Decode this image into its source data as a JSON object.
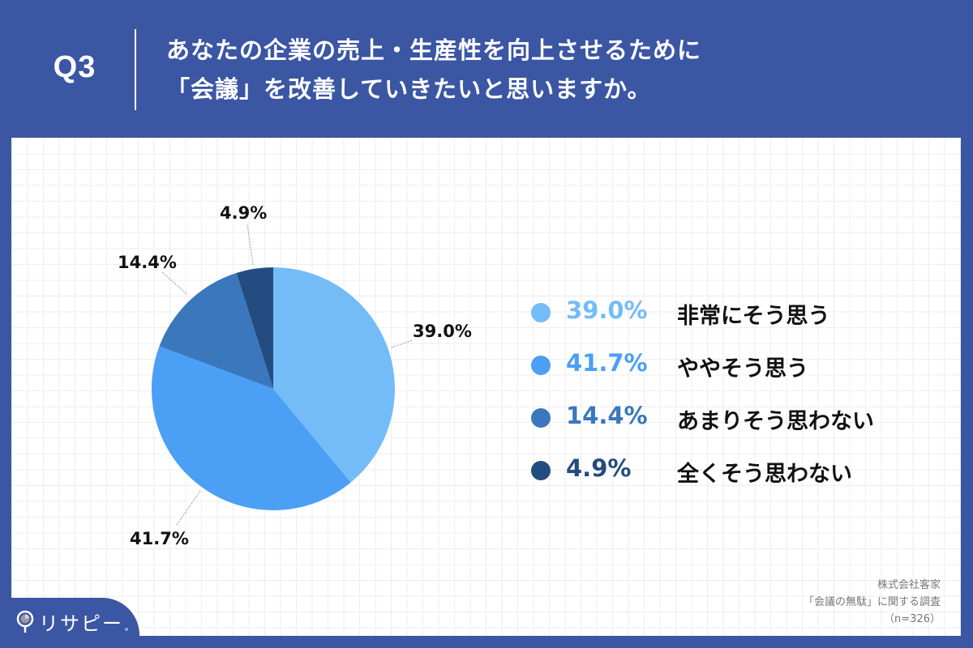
{
  "header": {
    "question_number": "Q3",
    "title_lines": [
      "あなたの企業の売上・生産性を向上させるために",
      "「会議」を改善していきたいと思いますか。"
    ]
  },
  "colors": {
    "background": "#3b56a3",
    "panel": "#ffffff",
    "grid": "#eeeeee",
    "slice_1": "#74bcf7",
    "slice_2": "#4b9ff5",
    "slice_3": "#3a77bd",
    "slice_4": "#234d80"
  },
  "chart_data": {
    "type": "pie",
    "title": "あなたの企業の売上・生産性を向上させるために「会議」を改善していきたいと思いますか。",
    "categories": [
      "非常にそう思う",
      "ややそう思う",
      "あまりそう思わない",
      "全くそう思わない"
    ],
    "values": [
      39.0,
      41.7,
      14.4,
      4.9
    ],
    "labels": [
      "39.0%",
      "41.7%",
      "14.4%",
      "4.9%"
    ],
    "colors": [
      "#74bcf7",
      "#4b9ff5",
      "#3a77bd",
      "#234d80"
    ],
    "start_angle": "12 o'clock, clockwise",
    "legend_position": "right",
    "n": 326
  },
  "legend": [
    {
      "pct": "39.0%",
      "label": "非常にそう思う",
      "color": "#74bcf7"
    },
    {
      "pct": "41.7%",
      "label": "ややそう思う",
      "color": "#4b9ff5"
    },
    {
      "pct": "14.4%",
      "label": "あまりそう思わない",
      "color": "#3a77bd"
    },
    {
      "pct": "4.9%",
      "label": "全くそう思わない",
      "color": "#234d80"
    }
  ],
  "pie_labels": {
    "slice_1": "39.0%",
    "slice_2": "41.7%",
    "slice_3": "14.4%",
    "slice_4": "4.9%"
  },
  "source": {
    "line1": "株式会社客家",
    "line2": "「会議の無駄」に関する調査",
    "line3": "（n=326）"
  },
  "logo": {
    "text": "リサピー",
    "icon": "map-pin-pie-icon"
  }
}
